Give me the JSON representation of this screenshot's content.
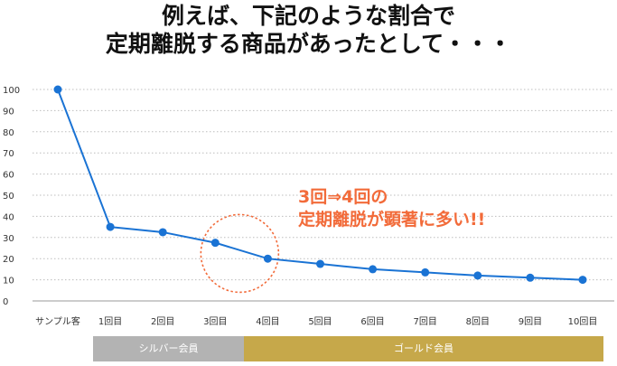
{
  "title": {
    "line1": "例えば、下記のような割合で",
    "line2": "定期離脱する商品があったとして・・・"
  },
  "annotation": {
    "line1": "3回⇒4回の",
    "line2": "定期離脱が顕著に多い!!"
  },
  "bands": {
    "silver": "シルバー会員",
    "gold": "ゴールド会員"
  },
  "colors": {
    "line": "#1a73d4",
    "annotation": "#f26b3a",
    "silver_band": "#b3b3b3",
    "gold_band": "#c6a84a",
    "grid": "#bdbdbd"
  },
  "chart_data": {
    "type": "line",
    "categories": [
      "サンプル客",
      "1回目",
      "2回目",
      "3回目",
      "4回目",
      "5回目",
      "6回目",
      "7回目",
      "8回目",
      "9回目",
      "10回目"
    ],
    "series": [
      {
        "values": [
          100,
          35,
          32.5,
          27.5,
          20,
          17.5,
          15,
          13.5,
          12,
          11,
          10
        ]
      }
    ],
    "y_ticks": [
      0,
      10,
      20,
      30,
      40,
      50,
      60,
      70,
      80,
      90,
      100
    ],
    "ylim": [
      0,
      100
    ],
    "grid": "horizontal dotted",
    "highlight": "dotted circle around 3回目–4回目"
  }
}
